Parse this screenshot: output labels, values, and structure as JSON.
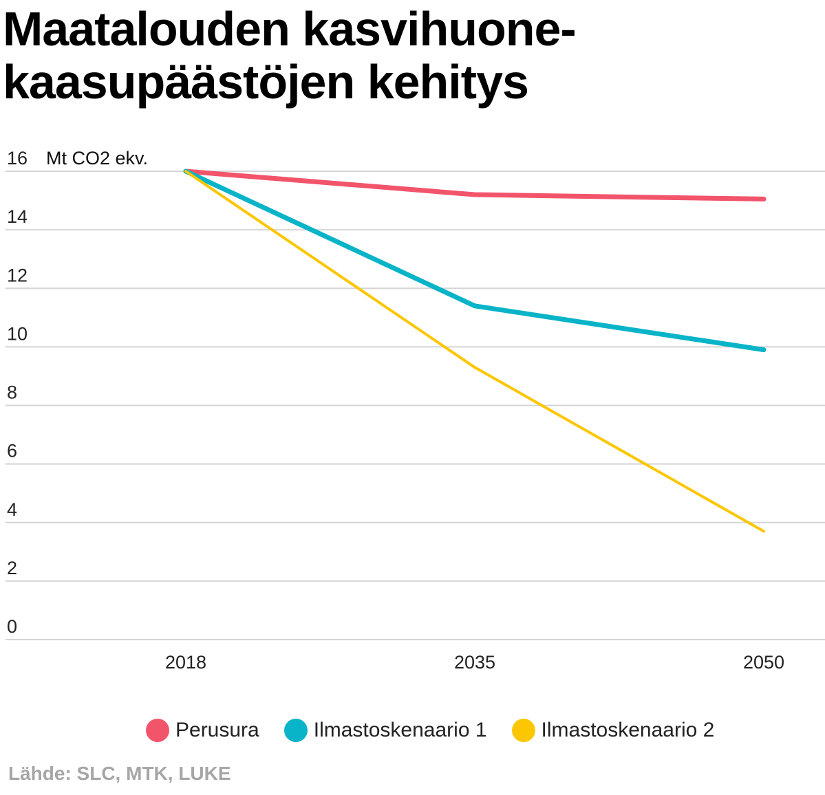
{
  "title_lines": [
    "Maatalouden kasvihuone-",
    "kaasupäästöjen kehitys"
  ],
  "source": "Lähde: SLC, MTK, LUKE",
  "chart_data": {
    "type": "line",
    "title": "Maatalouden kasvihuonekaasupäästöjen kehitys",
    "ylabel": "Mt CO2 ekv.",
    "xlabel": "",
    "x": [
      "2018",
      "2035",
      "2050"
    ],
    "ylim": [
      0,
      16
    ],
    "yticks": [
      0,
      2,
      4,
      6,
      8,
      10,
      12,
      14,
      16
    ],
    "grid": true,
    "legend_position": "bottom",
    "series": [
      {
        "name": "Perusura",
        "color": "#f2546a",
        "values": [
          16.0,
          15.2,
          15.05
        ]
      },
      {
        "name": "Ilmastoskenaario 1",
        "color": "#0ab4c8",
        "values": [
          16.0,
          11.4,
          9.9
        ]
      },
      {
        "name": "Ilmastoskenaario 2",
        "color": "#fcc600",
        "values": [
          16.0,
          9.3,
          3.7
        ]
      }
    ]
  }
}
